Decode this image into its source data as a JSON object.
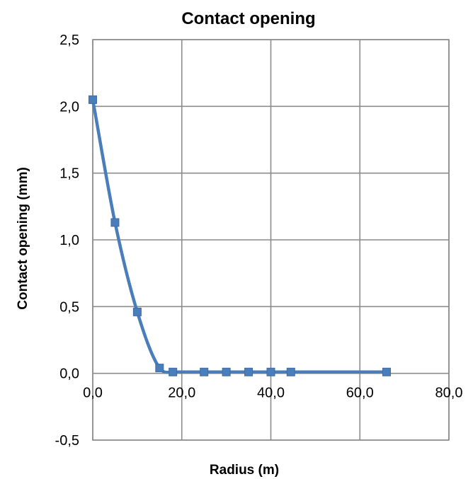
{
  "chart_data": {
    "type": "scatter",
    "title": "Contact opening",
    "xlabel": "Radius (m)",
    "ylabel": "Contact opening (mm)",
    "xlim": [
      0,
      80
    ],
    "ylim": [
      -0.5,
      2.5
    ],
    "x_ticks": [
      "0,0",
      "20,0",
      "40,0",
      "60,0",
      "80,0"
    ],
    "y_ticks": [
      "2,5",
      "2,0",
      "1,5",
      "1,0",
      "0,5",
      "0,0",
      "-0,5"
    ],
    "grid": true,
    "legend": "none",
    "series": [
      {
        "color": "#4a7ebb",
        "marker": "square",
        "smoothed": true,
        "points": [
          {
            "x": 0.0,
            "y": 2.05
          },
          {
            "x": 5.0,
            "y": 1.13
          },
          {
            "x": 10.0,
            "y": 0.46
          },
          {
            "x": 15.0,
            "y": 0.04
          },
          {
            "x": 18.0,
            "y": 0.01
          },
          {
            "x": 25.0,
            "y": 0.01
          },
          {
            "x": 30.0,
            "y": 0.01
          },
          {
            "x": 35.0,
            "y": 0.01
          },
          {
            "x": 40.0,
            "y": 0.01
          },
          {
            "x": 44.5,
            "y": 0.01
          },
          {
            "x": 66.0,
            "y": 0.01
          }
        ]
      }
    ]
  }
}
